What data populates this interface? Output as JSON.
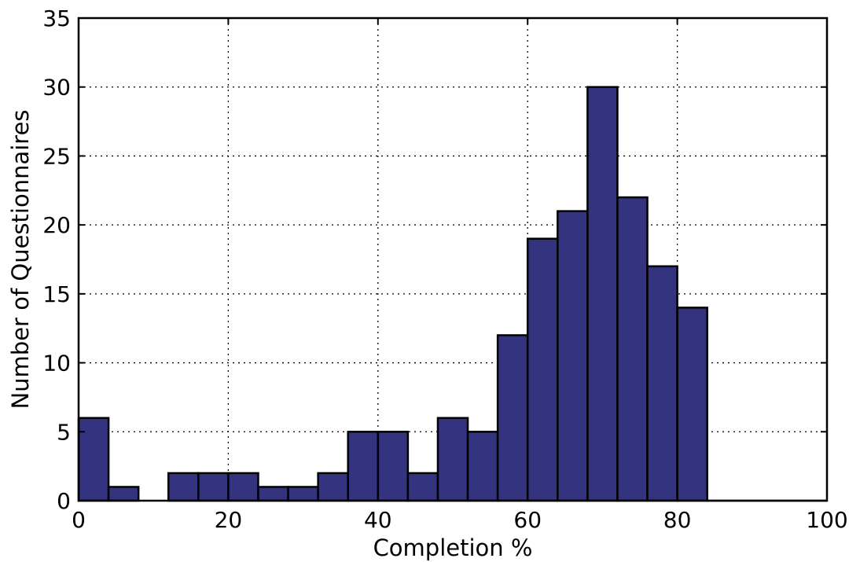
{
  "chart_data": {
    "type": "bar",
    "title": "",
    "xlabel": "Completion %",
    "ylabel": "Number of Questionnaires",
    "xlim": [
      0,
      100
    ],
    "ylim": [
      0,
      35
    ],
    "bin_width": 4,
    "bin_edges": [
      0,
      4,
      8,
      12,
      16,
      20,
      24,
      28,
      32,
      36,
      40,
      44,
      48,
      52,
      56,
      60,
      64,
      68,
      72,
      76,
      80,
      84
    ],
    "values": [
      6,
      1,
      0,
      2,
      2,
      2,
      1,
      1,
      2,
      5,
      5,
      2,
      6,
      5,
      12,
      19,
      21,
      30,
      22,
      17,
      14
    ],
    "xticks": [
      "0",
      "20",
      "40",
      "60",
      "80",
      "100"
    ],
    "yticks": [
      "0",
      "5",
      "10",
      "15",
      "20",
      "25",
      "30",
      "35"
    ],
    "grid": true,
    "bar_color": "#33337f"
  }
}
